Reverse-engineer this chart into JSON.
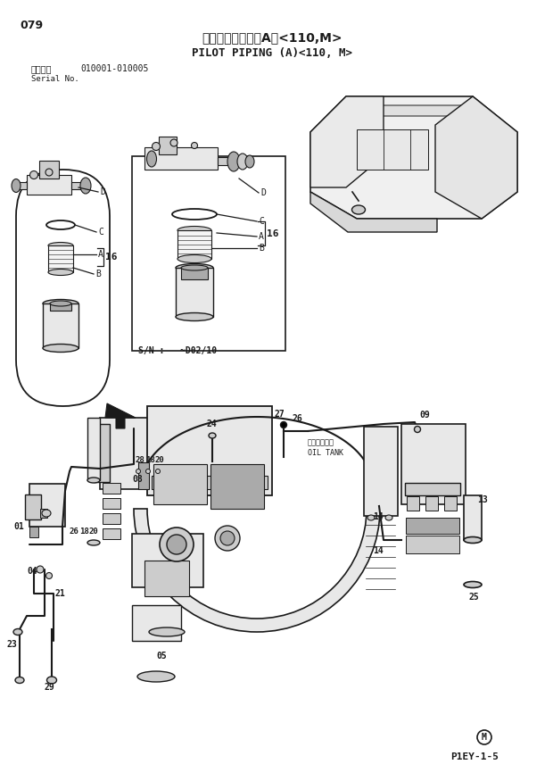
{
  "page_num": "079",
  "title_jp": "パイロット配管（A）<110,M>",
  "title_en": "PILOT PIPING (A)<110, M>",
  "serial_label": "適用号機",
  "serial_num": "010001-010005",
  "serial_no_label": "Serial No.",
  "footer_symbol": "M",
  "footer_code": "P1EY-1-5",
  "sn_note": "S/N :   ~D02/10",
  "bg_color": "#ffffff",
  "line_color": "#1a1a1a",
  "text_color": "#1a1a1a",
  "gray_fill": "#e8e8e8",
  "mid_gray": "#cccccc",
  "dark_gray": "#aaaaaa"
}
